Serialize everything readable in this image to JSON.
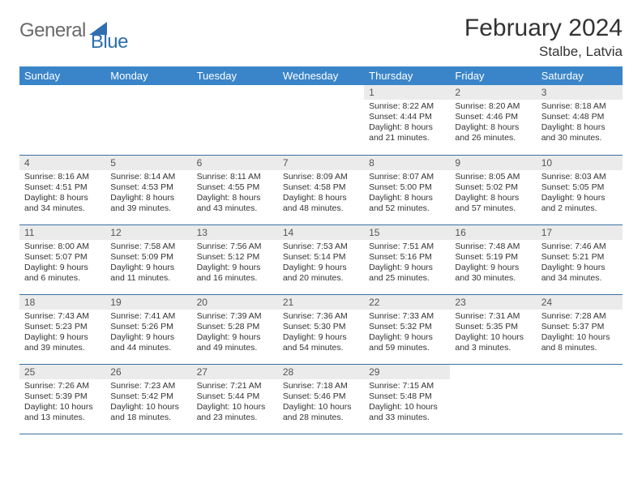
{
  "brand": {
    "word1": "General",
    "word2": "Blue"
  },
  "title": "February 2024",
  "location": "Stalbe, Latvia",
  "colors": {
    "header_bg": "#3a85c9",
    "header_fg": "#ffffff",
    "row_border": "#3a6fa3",
    "daynum_bg": "#ebebeb",
    "logo_gray": "#6a6a6a",
    "logo_blue": "#2f6faf"
  },
  "weekdays": [
    "Sunday",
    "Monday",
    "Tuesday",
    "Wednesday",
    "Thursday",
    "Friday",
    "Saturday"
  ],
  "weeks": [
    [
      {
        "n": "",
        "l1": "",
        "l2": "",
        "l3": "",
        "l4": "",
        "empty": true
      },
      {
        "n": "",
        "l1": "",
        "l2": "",
        "l3": "",
        "l4": "",
        "empty": true
      },
      {
        "n": "",
        "l1": "",
        "l2": "",
        "l3": "",
        "l4": "",
        "empty": true
      },
      {
        "n": "",
        "l1": "",
        "l2": "",
        "l3": "",
        "l4": "",
        "empty": true
      },
      {
        "n": "1",
        "l1": "Sunrise: 8:22 AM",
        "l2": "Sunset: 4:44 PM",
        "l3": "Daylight: 8 hours",
        "l4": "and 21 minutes."
      },
      {
        "n": "2",
        "l1": "Sunrise: 8:20 AM",
        "l2": "Sunset: 4:46 PM",
        "l3": "Daylight: 8 hours",
        "l4": "and 26 minutes."
      },
      {
        "n": "3",
        "l1": "Sunrise: 8:18 AM",
        "l2": "Sunset: 4:48 PM",
        "l3": "Daylight: 8 hours",
        "l4": "and 30 minutes."
      }
    ],
    [
      {
        "n": "4",
        "l1": "Sunrise: 8:16 AM",
        "l2": "Sunset: 4:51 PM",
        "l3": "Daylight: 8 hours",
        "l4": "and 34 minutes."
      },
      {
        "n": "5",
        "l1": "Sunrise: 8:14 AM",
        "l2": "Sunset: 4:53 PM",
        "l3": "Daylight: 8 hours",
        "l4": "and 39 minutes."
      },
      {
        "n": "6",
        "l1": "Sunrise: 8:11 AM",
        "l2": "Sunset: 4:55 PM",
        "l3": "Daylight: 8 hours",
        "l4": "and 43 minutes."
      },
      {
        "n": "7",
        "l1": "Sunrise: 8:09 AM",
        "l2": "Sunset: 4:58 PM",
        "l3": "Daylight: 8 hours",
        "l4": "and 48 minutes."
      },
      {
        "n": "8",
        "l1": "Sunrise: 8:07 AM",
        "l2": "Sunset: 5:00 PM",
        "l3": "Daylight: 8 hours",
        "l4": "and 52 minutes."
      },
      {
        "n": "9",
        "l1": "Sunrise: 8:05 AM",
        "l2": "Sunset: 5:02 PM",
        "l3": "Daylight: 8 hours",
        "l4": "and 57 minutes."
      },
      {
        "n": "10",
        "l1": "Sunrise: 8:03 AM",
        "l2": "Sunset: 5:05 PM",
        "l3": "Daylight: 9 hours",
        "l4": "and 2 minutes."
      }
    ],
    [
      {
        "n": "11",
        "l1": "Sunrise: 8:00 AM",
        "l2": "Sunset: 5:07 PM",
        "l3": "Daylight: 9 hours",
        "l4": "and 6 minutes."
      },
      {
        "n": "12",
        "l1": "Sunrise: 7:58 AM",
        "l2": "Sunset: 5:09 PM",
        "l3": "Daylight: 9 hours",
        "l4": "and 11 minutes."
      },
      {
        "n": "13",
        "l1": "Sunrise: 7:56 AM",
        "l2": "Sunset: 5:12 PM",
        "l3": "Daylight: 9 hours",
        "l4": "and 16 minutes."
      },
      {
        "n": "14",
        "l1": "Sunrise: 7:53 AM",
        "l2": "Sunset: 5:14 PM",
        "l3": "Daylight: 9 hours",
        "l4": "and 20 minutes."
      },
      {
        "n": "15",
        "l1": "Sunrise: 7:51 AM",
        "l2": "Sunset: 5:16 PM",
        "l3": "Daylight: 9 hours",
        "l4": "and 25 minutes."
      },
      {
        "n": "16",
        "l1": "Sunrise: 7:48 AM",
        "l2": "Sunset: 5:19 PM",
        "l3": "Daylight: 9 hours",
        "l4": "and 30 minutes."
      },
      {
        "n": "17",
        "l1": "Sunrise: 7:46 AM",
        "l2": "Sunset: 5:21 PM",
        "l3": "Daylight: 9 hours",
        "l4": "and 34 minutes."
      }
    ],
    [
      {
        "n": "18",
        "l1": "Sunrise: 7:43 AM",
        "l2": "Sunset: 5:23 PM",
        "l3": "Daylight: 9 hours",
        "l4": "and 39 minutes."
      },
      {
        "n": "19",
        "l1": "Sunrise: 7:41 AM",
        "l2": "Sunset: 5:26 PM",
        "l3": "Daylight: 9 hours",
        "l4": "and 44 minutes."
      },
      {
        "n": "20",
        "l1": "Sunrise: 7:39 AM",
        "l2": "Sunset: 5:28 PM",
        "l3": "Daylight: 9 hours",
        "l4": "and 49 minutes."
      },
      {
        "n": "21",
        "l1": "Sunrise: 7:36 AM",
        "l2": "Sunset: 5:30 PM",
        "l3": "Daylight: 9 hours",
        "l4": "and 54 minutes."
      },
      {
        "n": "22",
        "l1": "Sunrise: 7:33 AM",
        "l2": "Sunset: 5:32 PM",
        "l3": "Daylight: 9 hours",
        "l4": "and 59 minutes."
      },
      {
        "n": "23",
        "l1": "Sunrise: 7:31 AM",
        "l2": "Sunset: 5:35 PM",
        "l3": "Daylight: 10 hours",
        "l4": "and 3 minutes."
      },
      {
        "n": "24",
        "l1": "Sunrise: 7:28 AM",
        "l2": "Sunset: 5:37 PM",
        "l3": "Daylight: 10 hours",
        "l4": "and 8 minutes."
      }
    ],
    [
      {
        "n": "25",
        "l1": "Sunrise: 7:26 AM",
        "l2": "Sunset: 5:39 PM",
        "l3": "Daylight: 10 hours",
        "l4": "and 13 minutes."
      },
      {
        "n": "26",
        "l1": "Sunrise: 7:23 AM",
        "l2": "Sunset: 5:42 PM",
        "l3": "Daylight: 10 hours",
        "l4": "and 18 minutes."
      },
      {
        "n": "27",
        "l1": "Sunrise: 7:21 AM",
        "l2": "Sunset: 5:44 PM",
        "l3": "Daylight: 10 hours",
        "l4": "and 23 minutes."
      },
      {
        "n": "28",
        "l1": "Sunrise: 7:18 AM",
        "l2": "Sunset: 5:46 PM",
        "l3": "Daylight: 10 hours",
        "l4": "and 28 minutes."
      },
      {
        "n": "29",
        "l1": "Sunrise: 7:15 AM",
        "l2": "Sunset: 5:48 PM",
        "l3": "Daylight: 10 hours",
        "l4": "and 33 minutes."
      },
      {
        "n": "",
        "l1": "",
        "l2": "",
        "l3": "",
        "l4": "",
        "empty": true
      },
      {
        "n": "",
        "l1": "",
        "l2": "",
        "l3": "",
        "l4": "",
        "empty": true
      }
    ]
  ]
}
